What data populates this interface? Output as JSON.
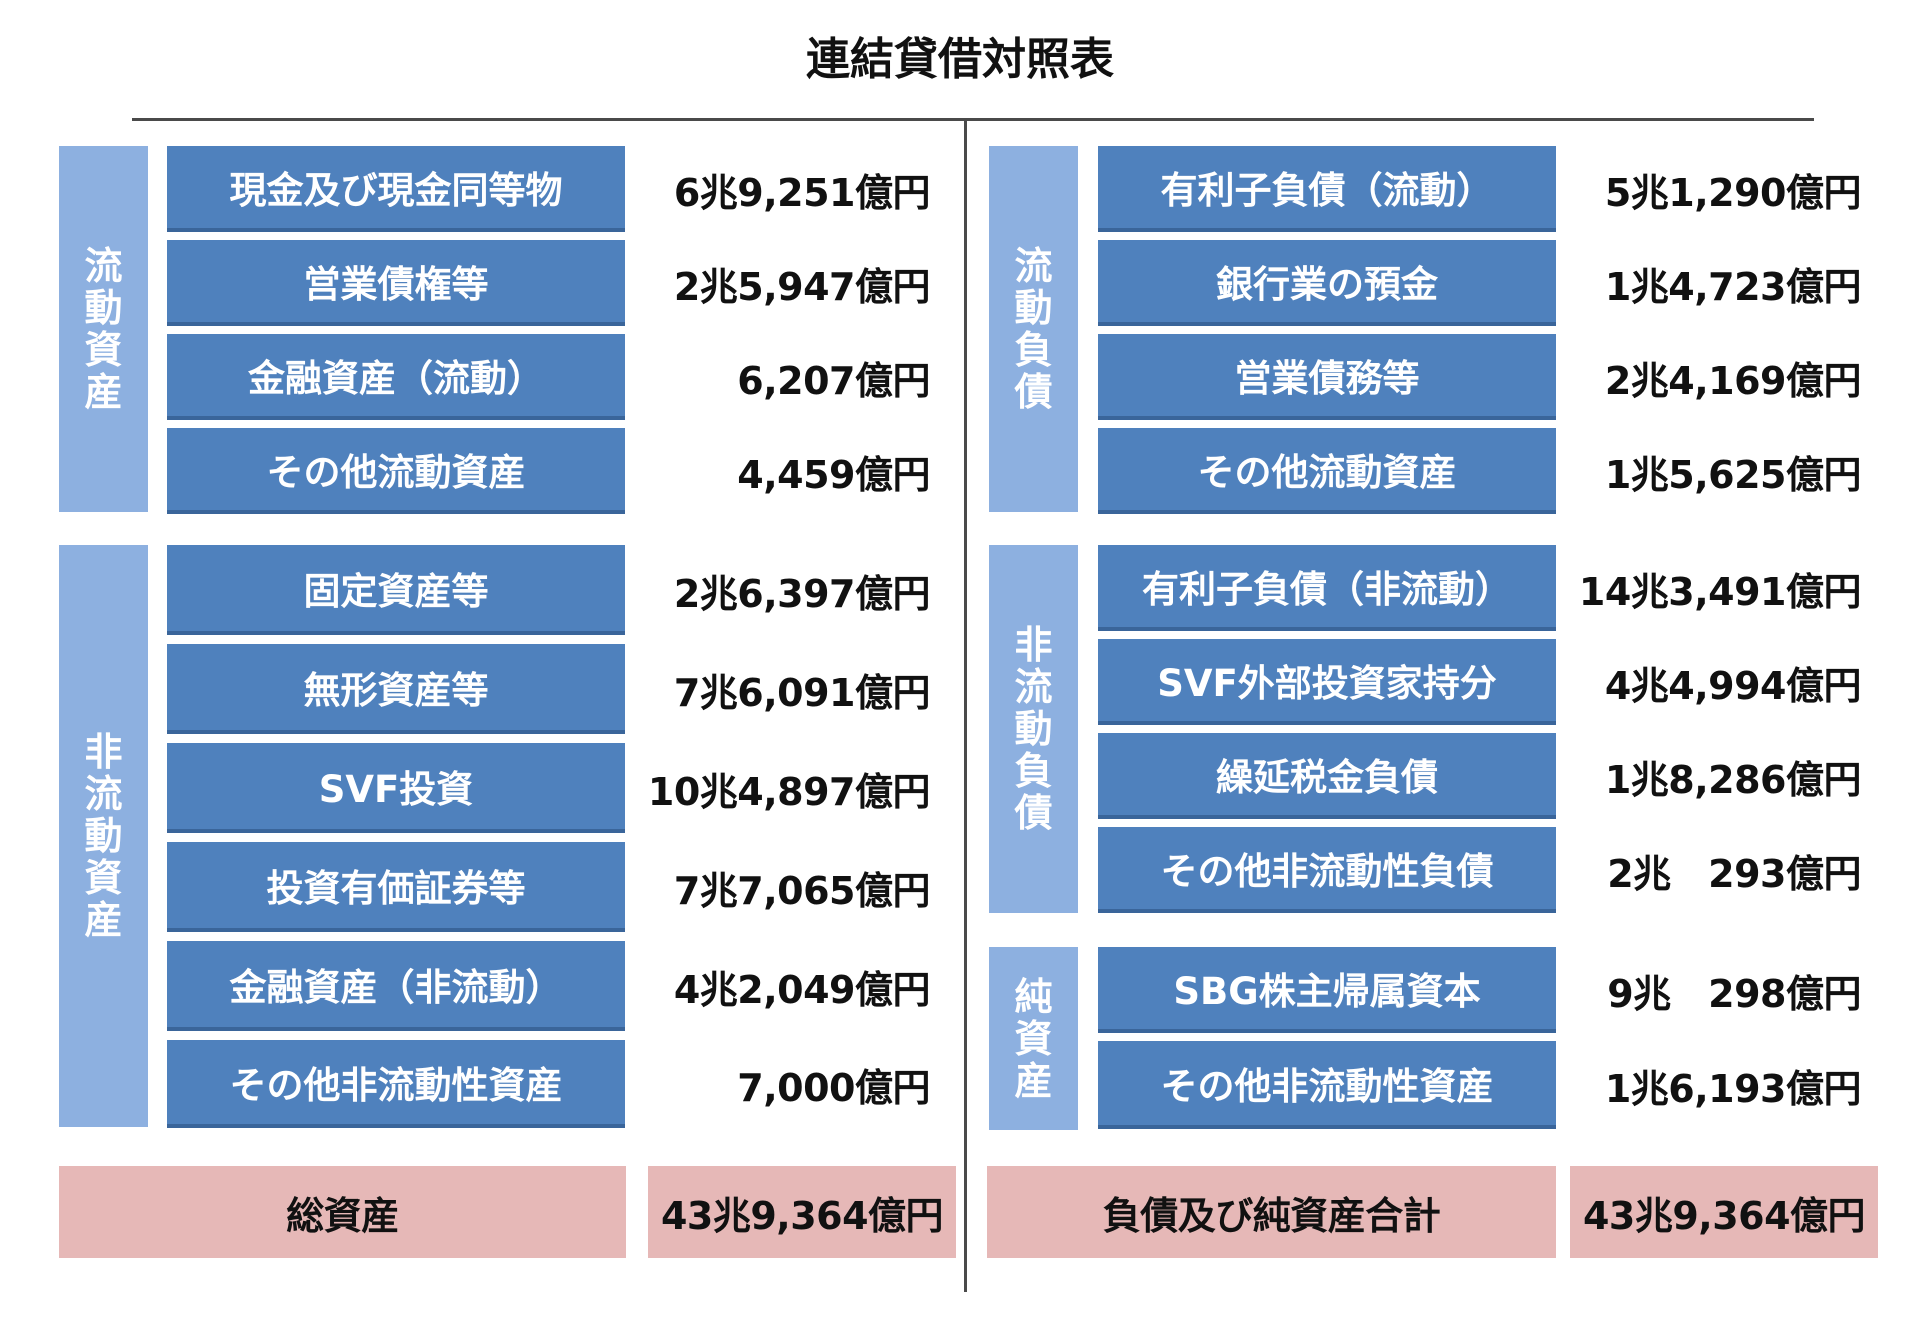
{
  "title": "連結貸借対照表",
  "left": {
    "current_assets": {
      "label_chars": [
        "流",
        "動",
        "資",
        "産"
      ],
      "items": [
        {
          "name": "現金及び現金同等物",
          "value": "6兆9,251億円"
        },
        {
          "name": "営業債権等",
          "value": "2兆5,947億円"
        },
        {
          "name": "金融資産（流動）",
          "value": "6,207億円"
        },
        {
          "name": "その他流動資産",
          "value": "4,459億円"
        }
      ]
    },
    "noncurrent_assets": {
      "label_chars": [
        "非",
        "流",
        "動",
        "資",
        "産"
      ],
      "items": [
        {
          "name": "固定資産等",
          "value": "2兆6,397億円"
        },
        {
          "name": "無形資産等",
          "value": "7兆6,091億円"
        },
        {
          "name": "SVF投資",
          "value": "10兆4,897億円"
        },
        {
          "name": "投資有価証券等",
          "value": "7兆7,065億円"
        },
        {
          "name": "金融資産（非流動）",
          "value": "4兆2,049億円"
        },
        {
          "name": "その他非流動性資産",
          "value": "7,000億円"
        }
      ]
    },
    "total": {
      "label": "総資産",
      "value": "43兆9,364億円"
    }
  },
  "right": {
    "current_liabilities": {
      "label_chars": [
        "流",
        "動",
        "負",
        "債"
      ],
      "items": [
        {
          "name": "有利子負債（流動）",
          "value": "5兆1,290億円"
        },
        {
          "name": "銀行業の預金",
          "value": "1兆4,723億円"
        },
        {
          "name": "営業債務等",
          "value": "2兆4,169億円"
        },
        {
          "name": "その他流動資産",
          "value": "1兆5,625億円"
        }
      ]
    },
    "noncurrent_liabilities": {
      "label_chars": [
        "非",
        "流",
        "動",
        "負",
        "債"
      ],
      "items": [
        {
          "name": "有利子負債（非流動）",
          "value": "14兆3,491億円"
        },
        {
          "name": "SVF外部投資家持分",
          "value": "4兆4,994億円"
        },
        {
          "name": "繰延税金負債",
          "value": "1兆8,286億円"
        },
        {
          "name": "その他非流動性負債",
          "value": "2兆　293億円"
        }
      ]
    },
    "net_assets": {
      "label_chars": [
        "純",
        "資",
        "産"
      ],
      "items": [
        {
          "name": "SBG株主帰属資本",
          "value": "9兆　298億円"
        },
        {
          "name": "その他非流動性資産",
          "value": "1兆6,193億円"
        }
      ]
    },
    "total": {
      "label": "負債及び純資産合計",
      "value": "43兆9,364億円"
    }
  }
}
